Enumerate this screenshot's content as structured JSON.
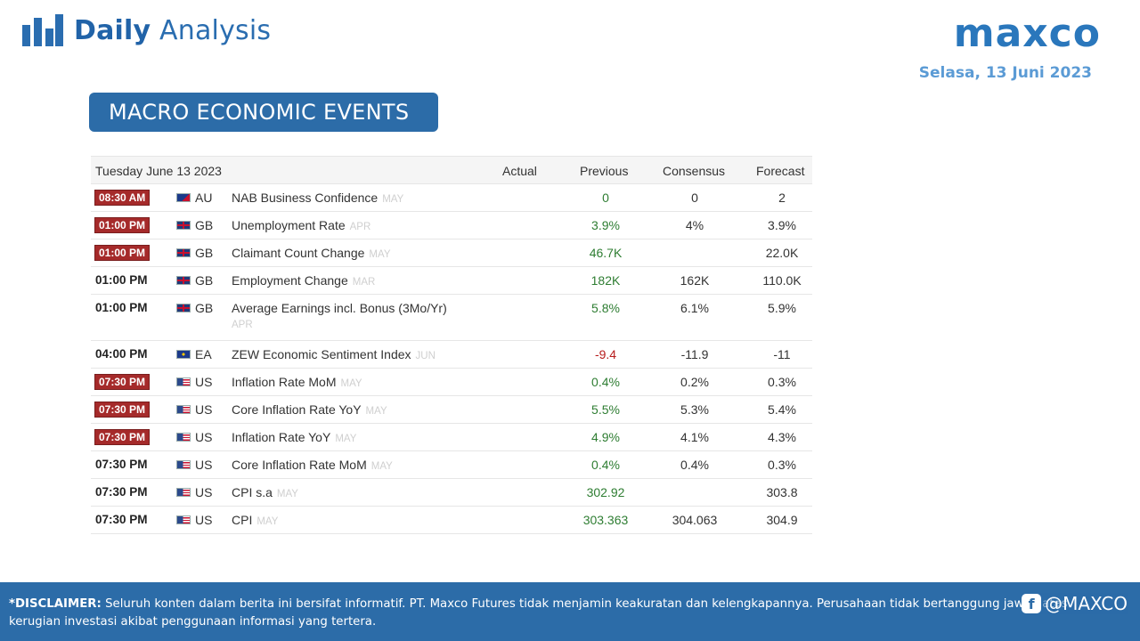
{
  "header": {
    "brand_bold": "Daily",
    "brand_light": "Analysis",
    "logo_text": "maxco",
    "date": "Selasa,  13 Juni 2023"
  },
  "section": {
    "title": "MACRO ECONOMIC EVENTS"
  },
  "calendar": {
    "columns": {
      "date": "Tuesday June 13 2023",
      "actual": "Actual",
      "previous": "Previous",
      "consensus": "Consensus",
      "forecast": "Forecast"
    },
    "rows": [
      {
        "time": "08:30 AM",
        "highlight": true,
        "flag": "au-flag-icon",
        "country": "AU",
        "event": "NAB Business Confidence",
        "period": "MAY",
        "actual": "",
        "previous": "0",
        "previous_color": "green",
        "consensus": "0",
        "forecast": "2"
      },
      {
        "time": "01:00 PM",
        "highlight": true,
        "flag": "gb-flag-icon",
        "country": "GB",
        "event": "Unemployment Rate",
        "period": "APR",
        "actual": "",
        "previous": "3.9%",
        "previous_color": "green",
        "consensus": "4%",
        "forecast": "3.9%"
      },
      {
        "time": "01:00 PM",
        "highlight": true,
        "flag": "gb-flag-icon",
        "country": "GB",
        "event": "Claimant Count Change",
        "period": "MAY",
        "actual": "",
        "previous": "46.7K",
        "previous_color": "green",
        "consensus": "",
        "forecast": "22.0K"
      },
      {
        "time": "01:00 PM",
        "highlight": false,
        "flag": "gb-flag-icon",
        "country": "GB",
        "event": "Employment Change",
        "period": "MAR",
        "actual": "",
        "previous": "182K",
        "previous_color": "green",
        "consensus": "162K",
        "forecast": "110.0K"
      },
      {
        "time": "01:00 PM",
        "highlight": false,
        "flag": "gb-flag-icon",
        "country": "GB",
        "event": "Average Earnings incl. Bonus (3Mo/Yr)",
        "period": "APR",
        "actual": "",
        "previous": "5.8%",
        "previous_color": "green",
        "consensus": "6.1%",
        "forecast": "5.9%"
      },
      {
        "time": "04:00 PM",
        "highlight": false,
        "flag": "ea-flag-icon",
        "country": "EA",
        "event": "ZEW Economic Sentiment Index",
        "period": "JUN",
        "actual": "",
        "previous": "-9.4",
        "previous_color": "red",
        "consensus": "-11.9",
        "forecast": "-11"
      },
      {
        "time": "07:30 PM",
        "highlight": true,
        "flag": "us-flag-icon",
        "country": "US",
        "event": "Inflation Rate MoM",
        "period": "MAY",
        "actual": "",
        "previous": "0.4%",
        "previous_color": "green",
        "consensus": "0.2%",
        "forecast": "0.3%"
      },
      {
        "time": "07:30 PM",
        "highlight": true,
        "flag": "us-flag-icon",
        "country": "US",
        "event": "Core Inflation Rate YoY",
        "period": "MAY",
        "actual": "",
        "previous": "5.5%",
        "previous_color": "green",
        "consensus": "5.3%",
        "forecast": "5.4%"
      },
      {
        "time": "07:30 PM",
        "highlight": true,
        "flag": "us-flag-icon",
        "country": "US",
        "event": "Inflation Rate YoY",
        "period": "MAY",
        "actual": "",
        "previous": "4.9%",
        "previous_color": "green",
        "consensus": "4.1%",
        "forecast": "4.3%"
      },
      {
        "time": "07:30 PM",
        "highlight": false,
        "flag": "us-flag-icon",
        "country": "US",
        "event": "Core Inflation Rate MoM",
        "period": "MAY",
        "actual": "",
        "previous": "0.4%",
        "previous_color": "green",
        "consensus": "0.4%",
        "forecast": "0.3%"
      },
      {
        "time": "07:30 PM",
        "highlight": false,
        "flag": "us-flag-icon",
        "country": "US",
        "event": "CPI s.a",
        "period": "MAY",
        "actual": "",
        "previous": "302.92",
        "previous_color": "green",
        "consensus": "",
        "forecast": "303.8"
      },
      {
        "time": "07:30 PM",
        "highlight": false,
        "flag": "us-flag-icon",
        "country": "US",
        "event": "CPI",
        "period": "MAY",
        "actual": "",
        "previous": "303.363",
        "previous_color": "green",
        "consensus": "304.063",
        "forecast": "304.9"
      }
    ]
  },
  "footer": {
    "disclaimer_label": "*DISCLAIMER:",
    "disclaimer_text": " Seluruh konten dalam berita ini bersifat informatif. PT. Maxco Futures tidak menjamin keakuratan dan kelengkapannya. Perusahaan tidak bertanggung jawab atas kerugian investasi akibat penggunaan informasi yang tertera.",
    "social_handle": "@MAXCO",
    "social_icon": "facebook-icon"
  },
  "colors": {
    "brand_blue": "#2c6ca8",
    "date_blue": "#5b9bd5",
    "highlight_red": "#a52a2a",
    "positive_green": "#2e7d32",
    "negative_red": "#b71c1c"
  }
}
